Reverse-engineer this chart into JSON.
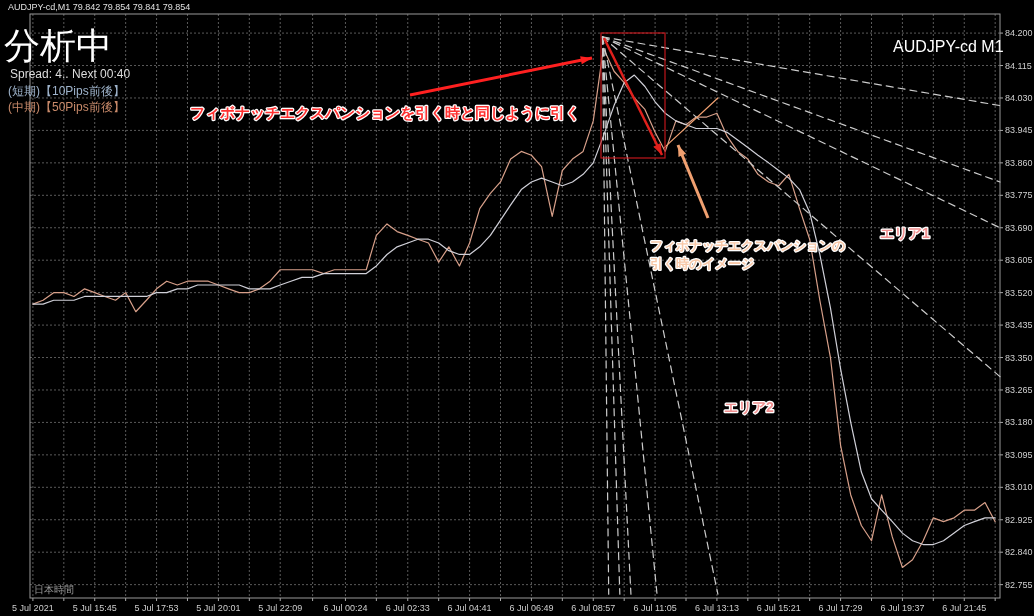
{
  "chart_data": {
    "type": "line",
    "title": "AUDJPY-cd,M1 79.842 79.854 79.841 79.854",
    "xlim": [
      "2021-07-05T13:31",
      "2021-07-06T22:59"
    ],
    "xticks": [
      {
        "value": "2021-07-05T13:37",
        "label": "5 Jul 2021"
      },
      {
        "value": "2021-07-05T14:41",
        "label": null
      },
      {
        "value": "2021-07-05T15:45",
        "label": "5 Jul 15:45"
      },
      {
        "value": "2021-07-05T16:49",
        "label": null
      },
      {
        "value": "2021-07-05T17:53",
        "label": "5 Jul 17:53"
      },
      {
        "value": "2021-07-05T18:57",
        "label": null
      },
      {
        "value": "2021-07-05T20:01",
        "label": "5 Jul 20:01"
      },
      {
        "value": "2021-07-05T21:05",
        "label": null
      },
      {
        "value": "2021-07-05T22:09",
        "label": "5 Jul 22:09"
      },
      {
        "value": "2021-07-05T23:16",
        "label": null
      },
      {
        "value": "2021-07-06T00:24",
        "label": "6 Jul 00:24"
      },
      {
        "value": "2021-07-06T01:28",
        "label": null
      },
      {
        "value": "2021-07-06T02:33",
        "label": "6 Jul 02:33"
      },
      {
        "value": "2021-07-06T03:37",
        "label": null
      },
      {
        "value": "2021-07-06T04:41",
        "label": "6 Jul 04:41"
      },
      {
        "value": "2021-07-06T05:45",
        "label": null
      },
      {
        "value": "2021-07-06T06:49",
        "label": "6 Jul 06:49"
      },
      {
        "value": "2021-07-06T07:53",
        "label": null
      },
      {
        "value": "2021-07-06T08:57",
        "label": "6 Jul 08:57"
      },
      {
        "value": "2021-07-06T10:01",
        "label": null
      },
      {
        "value": "2021-07-06T11:05",
        "label": "6 Jul 11:05"
      },
      {
        "value": "2021-07-06T12:09",
        "label": null
      },
      {
        "value": "2021-07-06T13:13",
        "label": "6 Jul 13:13"
      },
      {
        "value": "2021-07-06T14:17",
        "label": null
      },
      {
        "value": "2021-07-06T15:21",
        "label": "6 Jul 15:21"
      },
      {
        "value": "2021-07-06T16:25",
        "label": null
      },
      {
        "value": "2021-07-06T17:29",
        "label": "6 Jul 17:29"
      },
      {
        "value": "2021-07-06T18:33",
        "label": null
      },
      {
        "value": "2021-07-06T19:37",
        "label": "6 Jul 19:37"
      },
      {
        "value": "2021-07-06T20:41",
        "label": null
      },
      {
        "value": "2021-07-06T21:45",
        "label": "6 Jul 21:45"
      },
      {
        "value": "2021-07-06T22:49",
        "label": null
      }
    ],
    "ylim": [
      82.72,
      84.25
    ],
    "yticks": [
      {
        "value": 84.2,
        "label": "84.200"
      },
      {
        "value": 84.115,
        "label": "84.115"
      },
      {
        "value": 84.03,
        "label": "84.030"
      },
      {
        "value": 83.945,
        "label": "83.945"
      },
      {
        "value": 83.86,
        "label": "83.860"
      },
      {
        "value": 83.775,
        "label": "83.775"
      },
      {
        "value": 83.69,
        "label": "83.690"
      },
      {
        "value": 83.605,
        "label": "83.605"
      },
      {
        "value": 83.52,
        "label": "83.520"
      },
      {
        "value": 83.435,
        "label": "83.435"
      },
      {
        "value": 83.35,
        "label": "83.350"
      },
      {
        "value": 83.265,
        "label": "83.265"
      },
      {
        "value": 83.18,
        "label": "83.180"
      },
      {
        "value": 83.095,
        "label": "83.095"
      },
      {
        "value": 83.01,
        "label": "83.010"
      },
      {
        "value": 82.925,
        "label": "82.925"
      },
      {
        "value": 82.84,
        "label": "82.840"
      },
      {
        "value": 82.755,
        "label": "82.755"
      }
    ],
    "grid": true,
    "x": [
      "2021-07-05T13:37",
      "2021-07-05T13:58",
      "2021-07-05T14:20",
      "2021-07-05T14:41",
      "2021-07-05T15:02",
      "2021-07-05T15:24",
      "2021-07-05T15:45",
      "2021-07-05T16:06",
      "2021-07-05T16:28",
      "2021-07-05T16:49",
      "2021-07-05T17:10",
      "2021-07-05T17:32",
      "2021-07-05T17:53",
      "2021-07-05T18:14",
      "2021-07-05T18:36",
      "2021-07-05T18:57",
      "2021-07-05T19:18",
      "2021-07-05T19:40",
      "2021-07-05T20:01",
      "2021-07-05T20:22",
      "2021-07-05T20:44",
      "2021-07-05T21:05",
      "2021-07-05T21:26",
      "2021-07-05T21:48",
      "2021-07-05T22:09",
      "2021-07-05T22:31",
      "2021-07-05T22:54",
      "2021-07-05T23:16",
      "2021-07-05T23:39",
      "2021-07-06T00:01",
      "2021-07-06T00:24",
      "2021-07-06T00:45",
      "2021-07-06T01:07",
      "2021-07-06T01:28",
      "2021-07-06T01:50",
      "2021-07-06T02:11",
      "2021-07-06T02:33",
      "2021-07-06T02:54",
      "2021-07-06T03:16",
      "2021-07-06T03:37",
      "2021-07-06T03:58",
      "2021-07-06T04:20",
      "2021-07-06T04:41",
      "2021-07-06T05:02",
      "2021-07-06T05:24",
      "2021-07-06T05:45",
      "2021-07-06T06:06",
      "2021-07-06T06:28",
      "2021-07-06T06:49",
      "2021-07-06T07:10",
      "2021-07-06T07:32",
      "2021-07-06T07:53",
      "2021-07-06T08:14",
      "2021-07-06T08:36",
      "2021-07-06T08:57",
      "2021-07-06T09:18",
      "2021-07-06T09:40",
      "2021-07-06T10:01",
      "2021-07-06T10:22",
      "2021-07-06T10:44",
      "2021-07-06T11:05",
      "2021-07-06T11:26",
      "2021-07-06T11:48",
      "2021-07-06T12:09",
      "2021-07-06T12:30",
      "2021-07-06T12:52",
      "2021-07-06T13:13",
      "2021-07-06T13:34",
      "2021-07-06T13:56",
      "2021-07-06T14:17",
      "2021-07-06T14:38",
      "2021-07-06T15:00",
      "2021-07-06T15:21",
      "2021-07-06T15:42",
      "2021-07-06T16:04",
      "2021-07-06T16:25",
      "2021-07-06T16:46",
      "2021-07-06T17:08",
      "2021-07-06T17:29",
      "2021-07-06T17:50",
      "2021-07-06T18:12",
      "2021-07-06T18:33",
      "2021-07-06T18:54",
      "2021-07-06T19:16",
      "2021-07-06T19:37",
      "2021-07-06T19:58",
      "2021-07-06T20:20",
      "2021-07-06T20:41",
      "2021-07-06T21:02",
      "2021-07-06T21:24",
      "2021-07-06T21:45",
      "2021-07-06T22:06",
      "2021-07-06T22:28",
      "2021-07-06T22:49"
    ],
    "series": [
      {
        "color": "#d8a08a",
        "values": [
          83.49,
          83.5,
          83.52,
          83.52,
          83.51,
          83.53,
          83.52,
          83.51,
          83.5,
          83.52,
          83.47,
          83.5,
          83.53,
          83.55,
          83.54,
          83.55,
          83.55,
          83.55,
          83.54,
          83.53,
          83.52,
          83.52,
          83.53,
          83.55,
          83.58,
          83.58,
          83.58,
          83.58,
          83.57,
          83.58,
          83.58,
          83.58,
          83.58,
          83.67,
          83.7,
          83.68,
          83.67,
          83.66,
          83.65,
          83.6,
          83.64,
          83.59,
          83.65,
          83.74,
          83.78,
          83.81,
          83.87,
          83.89,
          83.88,
          83.85,
          83.72,
          83.84,
          83.87,
          83.89,
          83.97,
          84.16,
          84.1,
          84.07,
          84.03,
          84.0,
          83.94,
          83.89,
          83.97,
          83.96,
          83.98,
          83.98,
          83.99,
          83.93,
          83.89,
          83.87,
          83.83,
          83.81,
          83.8,
          83.83,
          83.74,
          83.66,
          83.5,
          83.35,
          83.12,
          82.99,
          82.91,
          82.87,
          82.99,
          82.88,
          82.8,
          82.82,
          82.87,
          82.93,
          82.92,
          82.93,
          82.95,
          82.95,
          82.97,
          82.92
        ]
      },
      {
        "color": "#d0d0d8",
        "values": [
          83.49,
          83.49,
          83.5,
          83.5,
          83.5,
          83.51,
          83.51,
          83.51,
          83.51,
          83.51,
          83.51,
          83.51,
          83.52,
          83.52,
          83.53,
          83.53,
          83.54,
          83.54,
          83.54,
          83.54,
          83.54,
          83.53,
          83.53,
          83.53,
          83.54,
          83.55,
          83.56,
          83.56,
          83.57,
          83.57,
          83.57,
          83.57,
          83.57,
          83.59,
          83.62,
          83.64,
          83.65,
          83.66,
          83.66,
          83.65,
          83.63,
          83.62,
          83.62,
          83.64,
          83.67,
          83.71,
          83.75,
          83.79,
          83.81,
          83.82,
          83.81,
          83.8,
          83.81,
          83.83,
          83.86,
          83.93,
          84.01,
          84.07,
          84.09,
          84.06,
          84.02,
          83.99,
          83.97,
          83.96,
          83.95,
          83.95,
          83.95,
          83.94,
          83.92,
          83.9,
          83.88,
          83.86,
          83.84,
          83.82,
          83.79,
          83.73,
          83.62,
          83.48,
          83.32,
          83.18,
          83.05,
          82.98,
          82.95,
          82.92,
          82.89,
          82.87,
          82.86,
          82.86,
          82.87,
          82.89,
          82.91,
          82.92,
          82.93,
          82.93
        ]
      },
      {
        "color": "#cccccc",
        "line_style": "dashed",
        "x": [
          "2021-07-06T09:16",
          "2021-07-06T22:59"
        ],
        "values": [
          84.19,
          84.01
        ]
      },
      {
        "color": "#cccccc",
        "line_style": "dashed",
        "x": [
          "2021-07-06T09:16",
          "2021-07-06T22:59"
        ],
        "values": [
          84.19,
          83.81
        ]
      },
      {
        "color": "#cccccc",
        "line_style": "dashed",
        "x": [
          "2021-07-06T09:16",
          "2021-07-06T22:59"
        ],
        "values": [
          84.19,
          83.69
        ]
      },
      {
        "color": "#cccccc",
        "line_style": "dashed",
        "x": [
          "2021-07-06T09:16",
          "2021-07-06T22:59"
        ],
        "values": [
          84.19,
          83.3
        ]
      },
      {
        "color": "#cccccc",
        "line_style": "dashed",
        "x": [
          "2021-07-06T09:16",
          "2021-07-06T09:29"
        ],
        "values": [
          84.19,
          82.73
        ]
      },
      {
        "color": "#cccccc",
        "line_style": "dashed",
        "x": [
          "2021-07-06T09:16",
          "2021-07-06T09:52"
        ],
        "values": [
          84.19,
          82.73
        ]
      },
      {
        "color": "#cccccc",
        "line_style": "dashed",
        "x": [
          "2021-07-06T09:16",
          "2021-07-06T10:15"
        ],
        "values": [
          84.19,
          82.73
        ]
      },
      {
        "color": "#cccccc",
        "line_style": "dashed",
        "x": [
          "2021-07-06T09:16",
          "2021-07-06T11:09"
        ],
        "values": [
          84.19,
          82.73
        ]
      },
      {
        "color": "#cccccc",
        "line_style": "dashed",
        "x": [
          "2021-07-06T09:16",
          "2021-07-06T13:15"
        ],
        "values": [
          84.19,
          82.73
        ]
      },
      {
        "color": "#f0a070",
        "x": [
          "2021-07-06T11:24",
          "2021-07-06T13:15"
        ],
        "values": [
          83.9,
          84.03
        ]
      }
    ],
    "annotations": [
      "分析中",
      "Spread: 4.. Next 00:40",
      "(短期)【10Pips前後】",
      "(中期)【50Pips前後】",
      "AUDJPY-cd M1",
      "フィボナッチエクスパンションを引く時と同じように引く",
      "フィボナッチエクスパンションの引く時のイメージ",
      "エリア1",
      "エリア2",
      "日本時間"
    ]
  }
}
